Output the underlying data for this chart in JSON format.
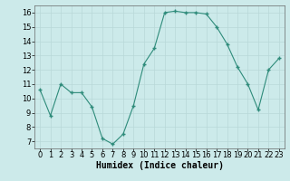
{
  "x": [
    0,
    1,
    2,
    3,
    4,
    5,
    6,
    7,
    8,
    9,
    10,
    11,
    12,
    13,
    14,
    15,
    16,
    17,
    18,
    19,
    20,
    21,
    22,
    23
  ],
  "y": [
    10.6,
    8.8,
    11.0,
    10.4,
    10.4,
    9.4,
    7.2,
    6.8,
    7.5,
    9.5,
    12.4,
    13.5,
    16.0,
    16.1,
    16.0,
    16.0,
    15.9,
    15.0,
    13.8,
    12.2,
    11.0,
    9.2,
    12.0,
    12.8
  ],
  "xlabel": "Humidex (Indice chaleur)",
  "ylim": [
    6.5,
    16.5
  ],
  "xlim": [
    -0.5,
    23.5
  ],
  "yticks": [
    7,
    8,
    9,
    10,
    11,
    12,
    13,
    14,
    15,
    16
  ],
  "xticks": [
    0,
    1,
    2,
    3,
    4,
    5,
    6,
    7,
    8,
    9,
    10,
    11,
    12,
    13,
    14,
    15,
    16,
    17,
    18,
    19,
    20,
    21,
    22,
    23
  ],
  "line_color": "#2e8b7a",
  "marker_color": "#2e8b7a",
  "bg_color": "#cceaea",
  "grid_color": "#b8d8d8",
  "axis_label_fontsize": 7,
  "tick_fontsize": 6,
  "xlabel_fontsize": 7
}
